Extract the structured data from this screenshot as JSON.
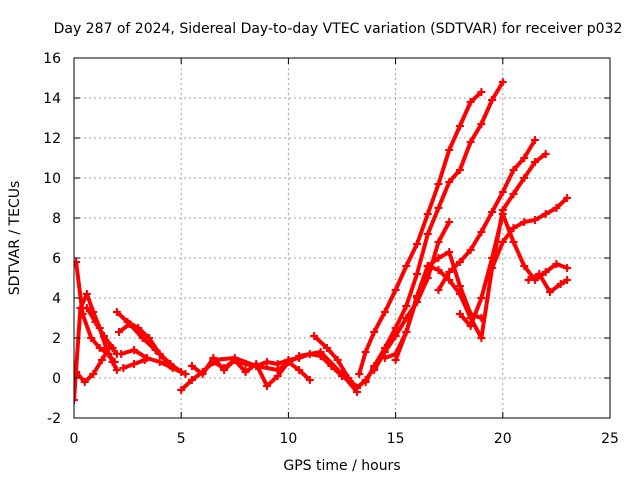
{
  "chart_data": {
    "type": "scatter",
    "title": "Day 287 of 2024, Sidereal Day-to-day VTEC variation (SDTVAR) for receiver p032",
    "xlabel": "GPS time / hours",
    "ylabel": "SDTVAR / TECUs",
    "xlim": [
      0,
      25
    ],
    "ylim": [
      -2,
      16
    ],
    "xticks": [
      "0",
      "5",
      "10",
      "15",
      "20",
      "25"
    ],
    "yticks": [
      "-2",
      "0",
      "2",
      "4",
      "6",
      "8",
      "10",
      "12",
      "14",
      "16"
    ],
    "xtick_values": [
      0,
      5,
      10,
      15,
      20,
      25
    ],
    "ytick_values": [
      -2,
      0,
      2,
      4,
      6,
      8,
      10,
      12,
      14,
      16
    ],
    "grid": true,
    "marker": "plus",
    "color": "#ff0000",
    "series": [
      {
        "x": [
          0.0,
          0.3,
          0.6,
          0.9,
          1.2,
          1.5,
          1.8,
          2.0
        ],
        "y": [
          -1.1,
          3.5,
          4.2,
          3.3,
          2.5,
          1.5,
          0.8,
          0.4
        ]
      },
      {
        "x": [
          0.1,
          0.4,
          0.8,
          1.2,
          1.6,
          1.9
        ],
        "y": [
          5.8,
          3.2,
          2.0,
          1.5,
          1.2,
          0.8
        ]
      },
      {
        "x": [
          0.1,
          0.5,
          0.9,
          1.3,
          1.7,
          2.0
        ],
        "y": [
          0.3,
          -0.2,
          0.2,
          0.9,
          1.6,
          1.2
        ]
      },
      {
        "x": [
          0.6,
          1.0,
          1.4,
          1.8
        ],
        "y": [
          3.5,
          2.8,
          2.1,
          1.5
        ]
      },
      {
        "x": [
          2.0,
          2.5,
          3.0,
          3.5,
          4.0,
          4.5,
          5.0
        ],
        "y": [
          3.3,
          2.8,
          2.5,
          2.0,
          1.2,
          0.7,
          0.3
        ]
      },
      {
        "x": [
          2.2,
          2.8,
          3.4,
          4.0,
          4.6,
          5.2
        ],
        "y": [
          1.2,
          1.4,
          1.0,
          0.8,
          0.5,
          0.2
        ]
      },
      {
        "x": [
          2.1,
          2.6,
          3.2,
          3.8,
          4.5
        ],
        "y": [
          2.3,
          2.7,
          2.0,
          1.4,
          0.6
        ]
      },
      {
        "x": [
          2.3,
          2.8,
          3.3
        ],
        "y": [
          0.5,
          0.7,
          0.9
        ]
      },
      {
        "x": [
          5.0,
          5.5,
          6.0,
          6.5,
          7.0,
          7.5,
          8.0,
          8.5,
          9.0,
          9.5,
          10.0,
          10.5,
          11.0,
          11.5,
          12.0,
          12.5,
          13.0
        ],
        "y": [
          -0.6,
          -0.1,
          0.3,
          0.8,
          0.5,
          0.9,
          0.7,
          0.6,
          0.8,
          0.7,
          0.9,
          1.0,
          1.2,
          1.1,
          0.6,
          0.1,
          -0.3
        ]
      },
      {
        "x": [
          5.5,
          6.0,
          6.5,
          7.0,
          7.5,
          8.0,
          8.5,
          9.0,
          9.5,
          10.0,
          10.5,
          11.0
        ],
        "y": [
          0.6,
          0.2,
          1.0,
          0.4,
          0.9,
          0.3,
          0.7,
          -0.4,
          0.1,
          0.8,
          0.4,
          -0.1
        ]
      },
      {
        "x": [
          6.5,
          7.5,
          8.5,
          9.5,
          10.5,
          11.5,
          12.5,
          13.2
        ],
        "y": [
          0.9,
          1.0,
          0.6,
          0.4,
          1.1,
          1.3,
          0.2,
          -0.7
        ]
      },
      {
        "x": [
          11.2,
          11.8,
          12.3,
          12.8,
          13.2,
          13.6,
          14.0
        ],
        "y": [
          2.1,
          1.5,
          0.9,
          0.0,
          -0.5,
          -0.1,
          0.5
        ]
      },
      {
        "x": [
          13.3,
          13.6,
          14.0,
          14.5,
          15.0,
          15.5,
          16.0,
          16.5,
          17.0,
          17.5,
          18.0,
          18.5,
          19.0
        ],
        "y": [
          0.2,
          1.3,
          2.3,
          3.3,
          4.4,
          5.6,
          6.7,
          8.2,
          9.7,
          11.4,
          12.6,
          13.8,
          14.3
        ]
      },
      {
        "x": [
          13.6,
          14.0,
          14.5,
          15.0,
          15.5,
          16.0,
          16.5,
          17.0,
          17.5,
          18.0,
          18.5,
          19.0,
          19.5,
          20.0
        ],
        "y": [
          -0.2,
          0.6,
          1.5,
          2.5,
          3.6,
          5.2,
          7.2,
          8.5,
          9.8,
          10.4,
          11.8,
          12.7,
          13.9,
          14.8
        ]
      },
      {
        "x": [
          14.0,
          14.5,
          15.0,
          15.5,
          16.0,
          16.5,
          17.0,
          17.5
        ],
        "y": [
          0.4,
          1.3,
          2.1,
          3.0,
          3.8,
          5.0,
          6.8,
          7.8
        ]
      },
      {
        "x": [
          14.5,
          15.0,
          15.5,
          16.0,
          16.5,
          17.0,
          17.5,
          18.0,
          18.5,
          19.0
        ],
        "y": [
          1.0,
          1.2,
          2.3,
          4.1,
          5.6,
          6.0,
          6.3,
          4.6,
          3.2,
          3.0
        ]
      },
      {
        "x": [
          15.0,
          15.5,
          16.0,
          16.5,
          17.0,
          17.5,
          18.0,
          18.5,
          19.0,
          19.5,
          20.0,
          20.5,
          21.0,
          21.5,
          22.0
        ],
        "y": [
          0.9,
          2.3,
          4.0,
          5.6,
          5.4,
          4.9,
          4.2,
          3.0,
          2.0,
          5.5,
          8.4,
          9.2,
          10.0,
          10.8,
          11.2
        ]
      },
      {
        "x": [
          17.0,
          17.5,
          18.0,
          18.5,
          19.0,
          19.5,
          20.0,
          20.5,
          21.0,
          21.5
        ],
        "y": [
          4.4,
          5.3,
          5.8,
          6.4,
          7.3,
          8.3,
          9.3,
          10.4,
          11.0,
          11.9
        ]
      },
      {
        "x": [
          18.0,
          18.5,
          19.0,
          19.5,
          20.0,
          20.5,
          21.0,
          21.5,
          22.0,
          22.5,
          23.0
        ],
        "y": [
          3.2,
          2.6,
          4.0,
          6.0,
          8.2,
          6.8,
          5.6,
          4.9,
          5.3,
          5.7,
          5.5
        ]
      },
      {
        "x": [
          19.5,
          20.0,
          20.5,
          21.0,
          21.5,
          22.0,
          22.5,
          23.0
        ],
        "y": [
          5.5,
          6.8,
          7.5,
          7.8,
          7.9,
          8.2,
          8.5,
          9.0
        ]
      },
      {
        "x": [
          21.2,
          21.7,
          22.2,
          22.7,
          23.0
        ],
        "y": [
          4.9,
          5.2,
          4.3,
          4.7,
          4.9
        ]
      }
    ]
  }
}
